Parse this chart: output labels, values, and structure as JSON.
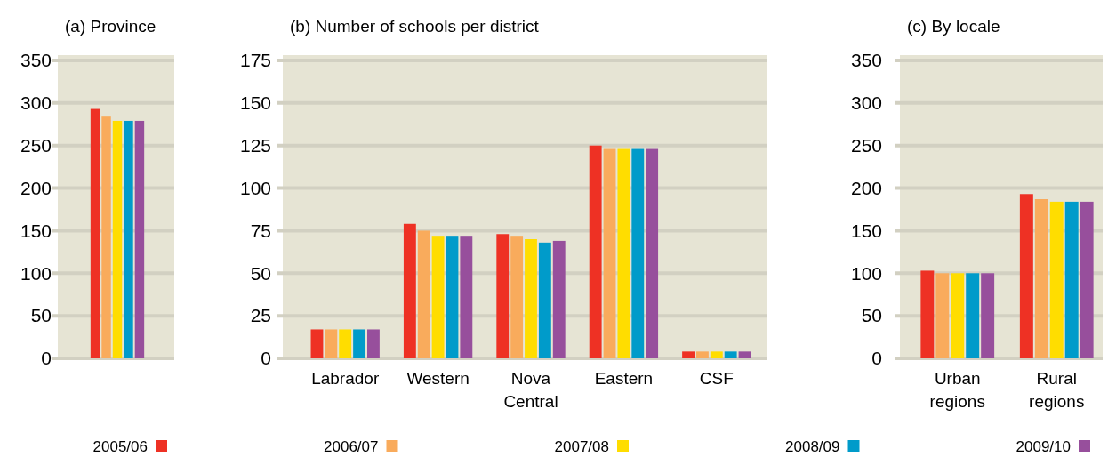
{
  "chart_data": [
    {
      "type": "bar",
      "title": "(a) Province",
      "categories": [
        null
      ],
      "ylim": [
        0,
        350
      ],
      "yticks": [
        0,
        50,
        100,
        150,
        200,
        250,
        300,
        350
      ],
      "grid": "y",
      "legend": "bottom",
      "series": [
        {
          "name": "2005/06",
          "color": "#ee3124",
          "values": [
            293
          ]
        },
        {
          "name": "2006/07",
          "color": "#f9ab5c",
          "values": [
            284
          ]
        },
        {
          "name": "2007/08",
          "color": "#ffdd00",
          "values": [
            279
          ]
        },
        {
          "name": "2008/09",
          "color": "#009bca",
          "values": [
            279
          ]
        },
        {
          "name": "2009/10",
          "color": "#974f9c",
          "values": [
            279
          ]
        }
      ]
    },
    {
      "type": "bar",
      "title": "(b) Number of schools per district",
      "categories": [
        "Labrador",
        "Western",
        "Nova Central",
        "Eastern",
        "CSF"
      ],
      "ylim": [
        0,
        175
      ],
      "yticks": [
        0,
        25,
        50,
        75,
        100,
        125,
        150,
        175
      ],
      "grid": "y",
      "series": [
        {
          "color": "#ee3124",
          "values": [
            17,
            79,
            73,
            125,
            4
          ]
        },
        {
          "color": "#f9ab5c",
          "values": [
            17,
            75,
            72,
            123,
            4
          ]
        },
        {
          "color": "#ffdd00",
          "values": [
            17,
            72,
            70,
            123,
            4
          ]
        },
        {
          "color": "#009bca",
          "values": [
            17,
            72,
            68,
            123,
            4
          ]
        },
        {
          "color": "#974f9c",
          "values": [
            17,
            72,
            69,
            123,
            4
          ]
        }
      ]
    },
    {
      "type": "bar",
      "title": "(c) By locale",
      "categories": [
        "Urban regions",
        "Rural regions"
      ],
      "ylim": [
        0,
        350
      ],
      "yticks": [
        0,
        50,
        100,
        150,
        200,
        250,
        300,
        350
      ],
      "grid": "y",
      "series": [
        {
          "color": "#ee3124",
          "values": [
            103,
            193
          ]
        },
        {
          "color": "#f9ab5c",
          "values": [
            100,
            187
          ]
        },
        {
          "color": "#ffdd00",
          "values": [
            100,
            184
          ]
        },
        {
          "color": "#009bca",
          "values": [
            100,
            184
          ]
        },
        {
          "color": "#974f9c",
          "values": [
            100,
            184
          ]
        }
      ]
    }
  ]
}
